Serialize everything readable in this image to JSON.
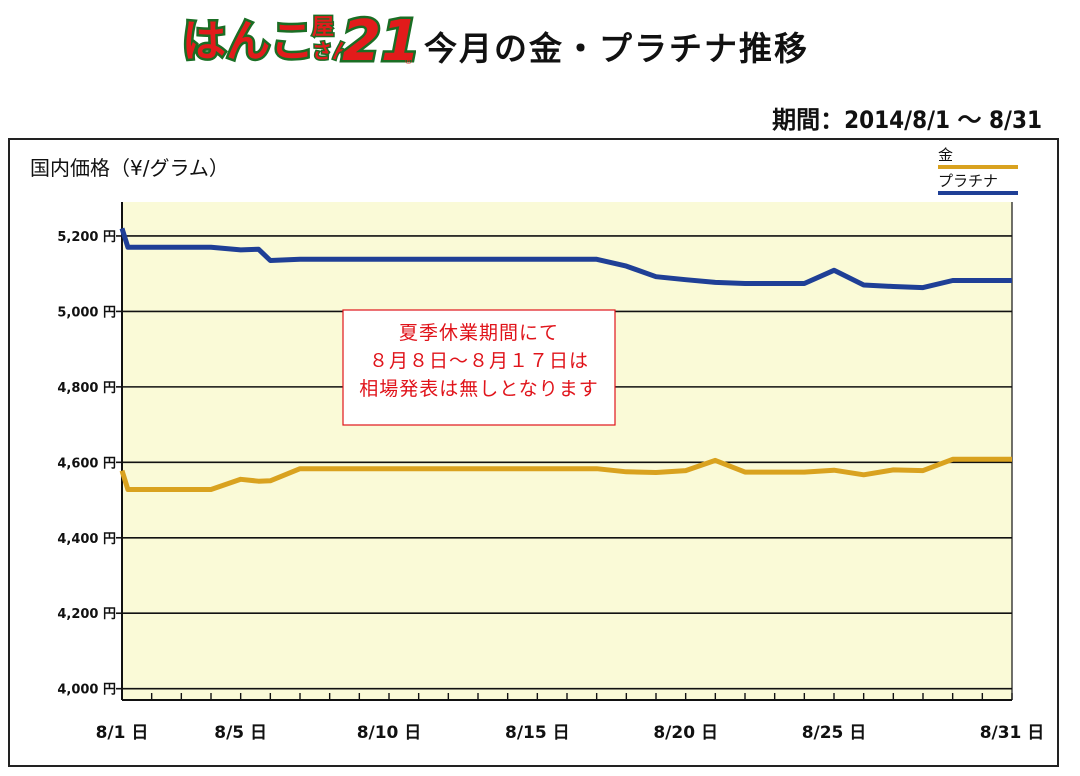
{
  "header": {
    "logo_text": "はんこ屋さん21",
    "title": "今月の金・プラチナ推移",
    "period": "期間：2014/8/1 〜 8/31"
  },
  "colors": {
    "gold": "#d9a21f",
    "platinum": "#1f3f96",
    "plot_bg": "#fafad7",
    "note_text": "#e0141b"
  },
  "chart_data": {
    "type": "line",
    "ylabel": "国内価格（¥/グラム）",
    "ylim": [
      3970,
      5290
    ],
    "yticks": [
      4000,
      4200,
      4400,
      4600,
      4800,
      5000,
      5200
    ],
    "ytick_labels": [
      "4,000 円",
      "4,200 円",
      "4,400 円",
      "4,600 円",
      "4,800 円",
      "5,000 円",
      "5,200 円"
    ],
    "xlim": [
      1,
      31
    ],
    "xticks": [
      1,
      5,
      10,
      15,
      20,
      25,
      31
    ],
    "xtick_labels": [
      "8/1 日",
      "8/5 日",
      "8/10 日",
      "8/15 日",
      "8/20 日",
      "8/25 日",
      "8/31 日"
    ],
    "grid": true,
    "legend_position": "top-right",
    "annotation": [
      "夏季休業期間にて",
      "８月８日〜８月１７日は",
      "相場発表は無しとなります"
    ],
    "series": [
      {
        "name": "金",
        "color": "#d9a21f",
        "x": [
          1,
          1.2,
          2,
          3,
          4,
          5,
          5.6,
          6,
          7,
          8,
          9,
          10,
          11,
          12,
          13,
          14,
          15,
          16,
          17,
          18,
          19,
          20,
          21,
          22,
          23,
          24,
          25,
          26,
          27,
          28,
          29,
          30,
          31
        ],
        "y": [
          4578,
          4528,
          4528,
          4528,
          4528,
          4555,
          4550,
          4551,
          4583,
          4583,
          4583,
          4583,
          4583,
          4583,
          4583,
          4583,
          4583,
          4583,
          4583,
          4575,
          4573,
          4578,
          4605,
          4574,
          4574,
          4574,
          4579,
          4567,
          4580,
          4578,
          4608,
          4608,
          4608
        ]
      },
      {
        "name": "プラチナ",
        "color": "#1f3f96",
        "x": [
          1,
          1.2,
          2,
          3,
          4,
          5,
          5.6,
          6,
          7,
          8,
          9,
          10,
          11,
          12,
          13,
          14,
          15,
          16,
          17,
          18,
          19,
          20,
          21,
          22,
          23,
          24,
          25,
          26,
          27,
          28,
          29,
          30,
          31
        ],
        "y": [
          5220,
          5170,
          5170,
          5170,
          5170,
          5163,
          5165,
          5135,
          5138,
          5138,
          5138,
          5138,
          5138,
          5138,
          5138,
          5138,
          5138,
          5138,
          5138,
          5120,
          5092,
          5084,
          5077,
          5074,
          5074,
          5074,
          5109,
          5070,
          5066,
          5063,
          5082,
          5082,
          5082
        ]
      }
    ]
  }
}
